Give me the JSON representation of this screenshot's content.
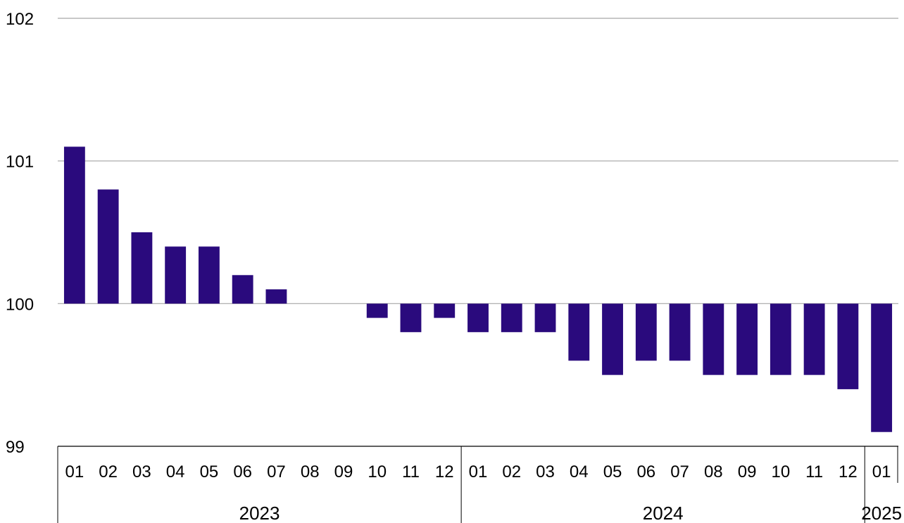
{
  "chart_data": {
    "type": "bar",
    "title": "",
    "xlabel": "",
    "ylabel": "",
    "ylim": [
      99,
      102
    ],
    "yticks": [
      99,
      100,
      101,
      102
    ],
    "baseline": 100,
    "grid": true,
    "legend": "none",
    "bar_color": "#2a0a7d",
    "grid_color": "#a6a6a6",
    "categories": [
      "01",
      "02",
      "03",
      "04",
      "05",
      "06",
      "07",
      "08",
      "09",
      "10",
      "11",
      "12",
      "01",
      "02",
      "03",
      "04",
      "05",
      "06",
      "07",
      "08",
      "09",
      "10",
      "11",
      "12",
      "01"
    ],
    "values": [
      101.1,
      100.8,
      100.5,
      100.4,
      100.4,
      100.2,
      100.1,
      100.0,
      100.0,
      99.9,
      99.8,
      99.9,
      99.8,
      99.8,
      99.8,
      99.6,
      99.5,
      99.6,
      99.6,
      99.5,
      99.5,
      99.5,
      99.5,
      99.4,
      99.1
    ],
    "groups": [
      {
        "label": "2023",
        "count": 12
      },
      {
        "label": "2024",
        "count": 12
      },
      {
        "label": "2025",
        "count": 1
      }
    ]
  }
}
